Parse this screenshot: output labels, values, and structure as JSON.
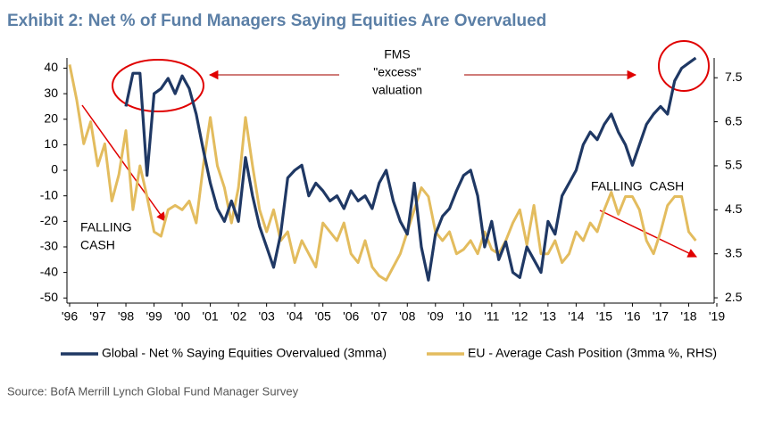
{
  "chart_data": {
    "type": "line",
    "title": "Exhibit 2: Net % of Fund Managers Saying Equities Are Overvalued",
    "source": "Source: BofA Merrill Lynch Global Fund Manager Survey",
    "annotations": [
      {
        "lines": [
          "FMS",
          "\"excess\"",
          "valuation"
        ]
      },
      {
        "lines": [
          "FALLING",
          "CASH"
        ]
      },
      {
        "lines": [
          "FALLING  CASH"
        ]
      }
    ],
    "x": [
      1996,
      1996.25,
      1996.5,
      1996.75,
      1997,
      1997.25,
      1997.5,
      1997.75,
      1998,
      1998.25,
      1998.5,
      1998.75,
      1999,
      1999.25,
      1999.5,
      1999.75,
      2000,
      2000.25,
      2000.5,
      2000.75,
      2001,
      2001.25,
      2001.5,
      2001.75,
      2002,
      2002.25,
      2002.5,
      2002.75,
      2003,
      2003.25,
      2003.5,
      2003.75,
      2004,
      2004.25,
      2004.5,
      2004.75,
      2005,
      2005.25,
      2005.5,
      2005.75,
      2006,
      2006.25,
      2006.5,
      2006.75,
      2007,
      2007.25,
      2007.5,
      2007.75,
      2008,
      2008.25,
      2008.5,
      2008.75,
      2009,
      2009.25,
      2009.5,
      2009.75,
      2010,
      2010.25,
      2010.5,
      2010.75,
      2011,
      2011.25,
      2011.5,
      2011.75,
      2012,
      2012.25,
      2012.5,
      2012.75,
      2013,
      2013.25,
      2013.5,
      2013.75,
      2014,
      2014.25,
      2014.5,
      2014.75,
      2015,
      2015.25,
      2015.5,
      2015.75,
      2016,
      2016.25,
      2016.5,
      2016.75,
      2017,
      2017.25,
      2017.5,
      2017.75,
      2018,
      2018.25
    ],
    "series": [
      {
        "name": "Global - Net % Saying Equities Overvalued (3mma)",
        "color": "#1f3864",
        "values": [
          null,
          null,
          null,
          null,
          null,
          null,
          null,
          null,
          25,
          38,
          38,
          -2,
          30,
          32,
          36,
          30,
          37,
          32,
          22,
          8,
          -5,
          -15,
          -20,
          -12,
          -20,
          5,
          -10,
          -22,
          -30,
          -38,
          -25,
          -3,
          0,
          2,
          -10,
          -5,
          -8,
          -12,
          -10,
          -15,
          -8,
          -12,
          -10,
          -15,
          -5,
          0,
          -12,
          -20,
          -25,
          -5,
          -30,
          -43,
          -25,
          -18,
          -15,
          -8,
          -2,
          0,
          -10,
          -30,
          -20,
          -35,
          -28,
          -40,
          -42,
          -30,
          -35,
          -40,
          -20,
          -25,
          -10,
          -5,
          0,
          10,
          15,
          12,
          18,
          22,
          15,
          10,
          2,
          10,
          18,
          22,
          25,
          22,
          35,
          40,
          42,
          44
        ]
      },
      {
        "name": "EU - Average Cash Position (3mma %, RHS)",
        "color": "#e3bc5e",
        "axis": "y2",
        "values": [
          7.8,
          7.0,
          6.0,
          6.5,
          5.5,
          6.0,
          4.7,
          5.3,
          6.3,
          4.5,
          5.5,
          4.8,
          4.0,
          3.9,
          4.5,
          4.6,
          4.5,
          4.7,
          4.2,
          5.5,
          6.6,
          5.5,
          5.0,
          4.2,
          5.0,
          6.6,
          5.5,
          4.5,
          4.0,
          4.5,
          3.8,
          4.0,
          3.3,
          3.8,
          3.5,
          3.2,
          4.2,
          4.0,
          3.8,
          4.2,
          3.5,
          3.3,
          3.8,
          3.2,
          3.0,
          2.9,
          3.2,
          3.5,
          4.0,
          4.5,
          5.0,
          4.8,
          4.0,
          3.8,
          4.0,
          3.5,
          3.6,
          3.8,
          3.5,
          4.0,
          3.6,
          3.5,
          3.8,
          4.2,
          4.5,
          3.7,
          4.6,
          3.5,
          3.5,
          3.8,
          3.3,
          3.5,
          4.0,
          3.8,
          4.2,
          4.0,
          4.5,
          4.9,
          4.4,
          4.8,
          4.8,
          4.5,
          3.8,
          3.5,
          4.0,
          4.6,
          4.8,
          4.8,
          4.0,
          3.8
        ]
      }
    ],
    "xlim": [
      1996,
      2019
    ],
    "xticks": [
      {
        "value": 1996,
        "label": "'96"
      },
      {
        "value": 1997,
        "label": "'97"
      },
      {
        "value": 1998,
        "label": "'98"
      },
      {
        "value": 1999,
        "label": "'99"
      },
      {
        "value": 2000,
        "label": "'00"
      },
      {
        "value": 2001,
        "label": "'01"
      },
      {
        "value": 2002,
        "label": "'02"
      },
      {
        "value": 2003,
        "label": "'03"
      },
      {
        "value": 2004,
        "label": "'04"
      },
      {
        "value": 2005,
        "label": "'05"
      },
      {
        "value": 2006,
        "label": "'06"
      },
      {
        "value": 2007,
        "label": "'07"
      },
      {
        "value": 2008,
        "label": "'08"
      },
      {
        "value": 2009,
        "label": "'09"
      },
      {
        "value": 2010,
        "label": "'10"
      },
      {
        "value": 2011,
        "label": "'11"
      },
      {
        "value": 2012,
        "label": "'12"
      },
      {
        "value": 2013,
        "label": "'13"
      },
      {
        "value": 2014,
        "label": "'14"
      },
      {
        "value": 2015,
        "label": "'15"
      },
      {
        "value": 2016,
        "label": "'16"
      },
      {
        "value": 2017,
        "label": "'17"
      },
      {
        "value": 2018,
        "label": "'18"
      },
      {
        "value": 2019,
        "label": "'19"
      }
    ],
    "ylim": [
      -52,
      44
    ],
    "yticks": [
      40,
      30,
      20,
      10,
      0,
      -10,
      -20,
      -30,
      -40,
      -50
    ],
    "y2lim": [
      2.38,
      7.95
    ],
    "y2ticks": [
      7.5,
      6.5,
      5.5,
      4.5,
      3.5,
      2.5
    ],
    "grid": false
  }
}
